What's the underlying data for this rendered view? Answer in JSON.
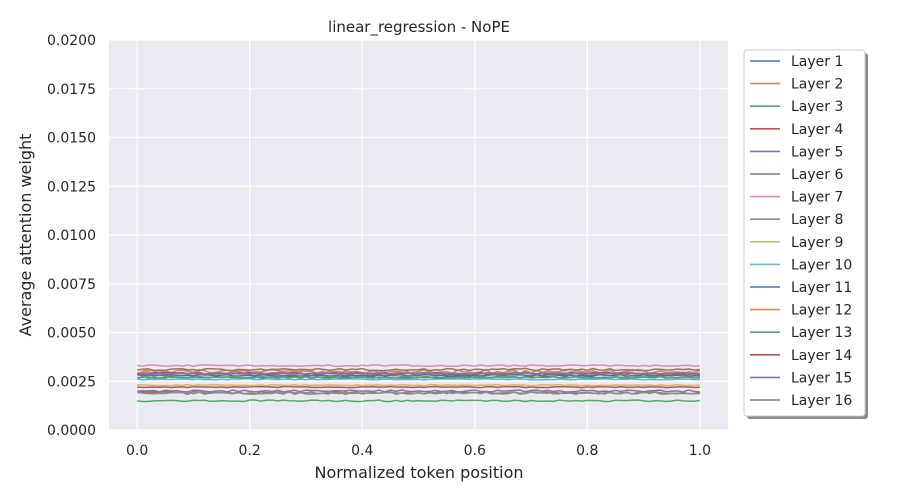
{
  "chart_data": {
    "type": "line",
    "title": "linear_regression - NoPE",
    "xlabel": "Normalized token position",
    "ylabel": "Average attention weight",
    "xlim": [
      -0.05,
      1.05
    ],
    "ylim": [
      0.0,
      0.02
    ],
    "xticks": [
      "0.0",
      "0.2",
      "0.4",
      "0.6",
      "0.8",
      "1.0"
    ],
    "xtick_values": [
      0.0,
      0.2,
      0.4,
      0.6,
      0.8,
      1.0
    ],
    "yticks": [
      "0.0000",
      "0.0025",
      "0.0050",
      "0.0075",
      "0.0100",
      "0.0125",
      "0.0150",
      "0.0175",
      "0.0200"
    ],
    "ytick_values": [
      0.0,
      0.0025,
      0.005,
      0.0075,
      0.01,
      0.0125,
      0.015,
      0.0175,
      0.02
    ],
    "grid": true,
    "legend_position": "outside-right",
    "x_start": 0.0,
    "x_end": 1.0,
    "num_points": 101,
    "series": [
      {
        "name": "Layer 1",
        "color": "#4c72b0",
        "mean": 0.0027,
        "noise": 4e-05
      },
      {
        "name": "Layer 2",
        "color": "#dd8452",
        "mean": 0.0029,
        "noise": 0.00012
      },
      {
        "name": "Layer 3",
        "color": "#55a868",
        "mean": 0.0015,
        "noise": 4e-05
      },
      {
        "name": "Layer 4",
        "color": "#c44e52",
        "mean": 0.0022,
        "noise": 3e-05
      },
      {
        "name": "Layer 5",
        "color": "#8172b3",
        "mean": 0.002,
        "noise": 5e-05
      },
      {
        "name": "Layer 6",
        "color": "#937860",
        "mean": 0.0019,
        "noise": 7e-05
      },
      {
        "name": "Layer 7",
        "color": "#da8bc3",
        "mean": 0.0033,
        "noise": 4e-05
      },
      {
        "name": "Layer 8",
        "color": "#8c8c8c",
        "mean": 0.0019,
        "noise": 5e-05
      },
      {
        "name": "Layer 9",
        "color": "#ccb974",
        "mean": 0.0023,
        "noise": 3e-05
      },
      {
        "name": "Layer 10",
        "color": "#64b5cd",
        "mean": 0.0026,
        "noise": 3e-05
      },
      {
        "name": "Layer 11",
        "color": "#4c72b0",
        "mean": 0.0028,
        "noise": 4e-05
      },
      {
        "name": "Layer 12",
        "color": "#dd8452",
        "mean": 0.003,
        "noise": 0.0001
      },
      {
        "name": "Layer 13",
        "color": "#55a868",
        "mean": 0.0027,
        "noise": 5e-05
      },
      {
        "name": "Layer 14",
        "color": "#c44e52",
        "mean": 0.0029,
        "noise": 6e-05
      },
      {
        "name": "Layer 15",
        "color": "#8172b3",
        "mean": 0.0029,
        "noise": 3e-05
      },
      {
        "name": "Layer 16",
        "color": "#937860",
        "mean": 0.0031,
        "noise": 6e-05
      }
    ]
  }
}
